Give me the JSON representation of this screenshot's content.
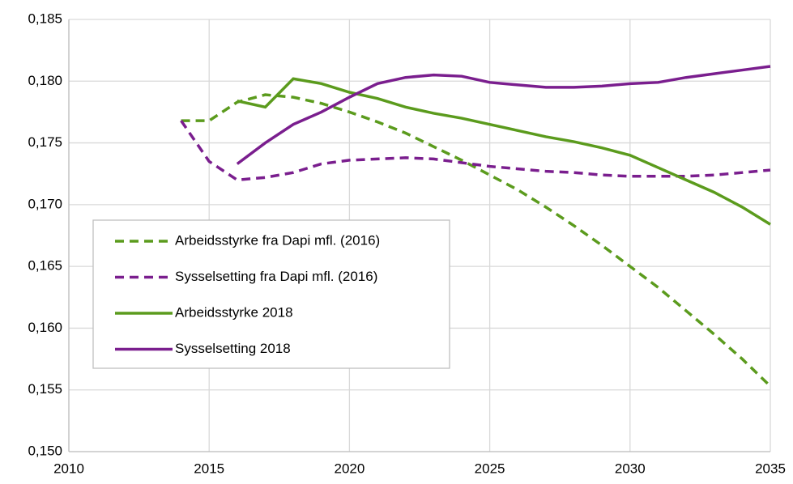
{
  "chart_data": {
    "type": "line",
    "x": [
      2014,
      2015,
      2016,
      2017,
      2018,
      2019,
      2020,
      2021,
      2022,
      2023,
      2024,
      2025,
      2026,
      2027,
      2028,
      2029,
      2030,
      2031,
      2032,
      2033,
      2034,
      2035
    ],
    "series": [
      {
        "name": "Arbeidsstyrke fra Dapi mfl. (2016)",
        "color": "#5b9b1d",
        "dashed": true,
        "values": [
          0.1768,
          0.1768,
          0.1783,
          0.1789,
          0.1787,
          0.1782,
          0.1775,
          0.1767,
          0.1758,
          0.1747,
          0.1736,
          0.1724,
          0.1712,
          0.1698,
          0.1683,
          0.1667,
          0.165,
          0.1633,
          0.1614,
          0.1595,
          0.1575,
          0.1553
        ]
      },
      {
        "name": "Sysselsetting fra Dapi mfl. (2016)",
        "color": "#7a1e8e",
        "dashed": true,
        "values": [
          0.1768,
          0.1735,
          0.172,
          0.1722,
          0.1726,
          0.1733,
          0.1736,
          0.1737,
          0.1738,
          0.1737,
          0.1734,
          0.1731,
          0.1729,
          0.1727,
          0.1726,
          0.1724,
          0.1723,
          0.1723,
          0.1723,
          0.1724,
          0.1726,
          0.1728
        ]
      },
      {
        "name": "Arbeidsstyrke 2018",
        "color": "#5b9b1d",
        "dashed": false,
        "values": [
          null,
          null,
          0.1784,
          0.1779,
          0.1802,
          0.1798,
          0.1791,
          0.1786,
          0.1779,
          0.1774,
          0.177,
          0.1765,
          0.176,
          0.1755,
          0.1751,
          0.1746,
          0.174,
          0.173,
          0.172,
          0.171,
          0.1698,
          0.1684
        ]
      },
      {
        "name": "Sysselsetting 2018",
        "color": "#7a1e8e",
        "dashed": false,
        "values": [
          null,
          null,
          0.1733,
          0.175,
          0.1765,
          0.1775,
          0.1787,
          0.1798,
          0.1803,
          0.1805,
          0.1804,
          0.1799,
          0.1797,
          0.1795,
          0.1795,
          0.1796,
          0.1798,
          0.1799,
          0.1803,
          0.1806,
          0.1809,
          0.1812
        ]
      }
    ],
    "xlim": [
      2010,
      2035
    ],
    "xticks": [
      2010,
      2015,
      2020,
      2025,
      2030,
      2035
    ],
    "ylim": [
      0.15,
      0.185
    ],
    "yticks": [
      {
        "value": 0.15,
        "label": "0,150"
      },
      {
        "value": 0.155,
        "label": "0,155"
      },
      {
        "value": 0.16,
        "label": "0,160"
      },
      {
        "value": 0.165,
        "label": "0,165"
      },
      {
        "value": 0.17,
        "label": "0,170"
      },
      {
        "value": 0.175,
        "label": "0,175"
      },
      {
        "value": 0.18,
        "label": "0,180"
      },
      {
        "value": 0.185,
        "label": "0,185"
      }
    ],
    "grid": true,
    "legend": "lower left"
  }
}
